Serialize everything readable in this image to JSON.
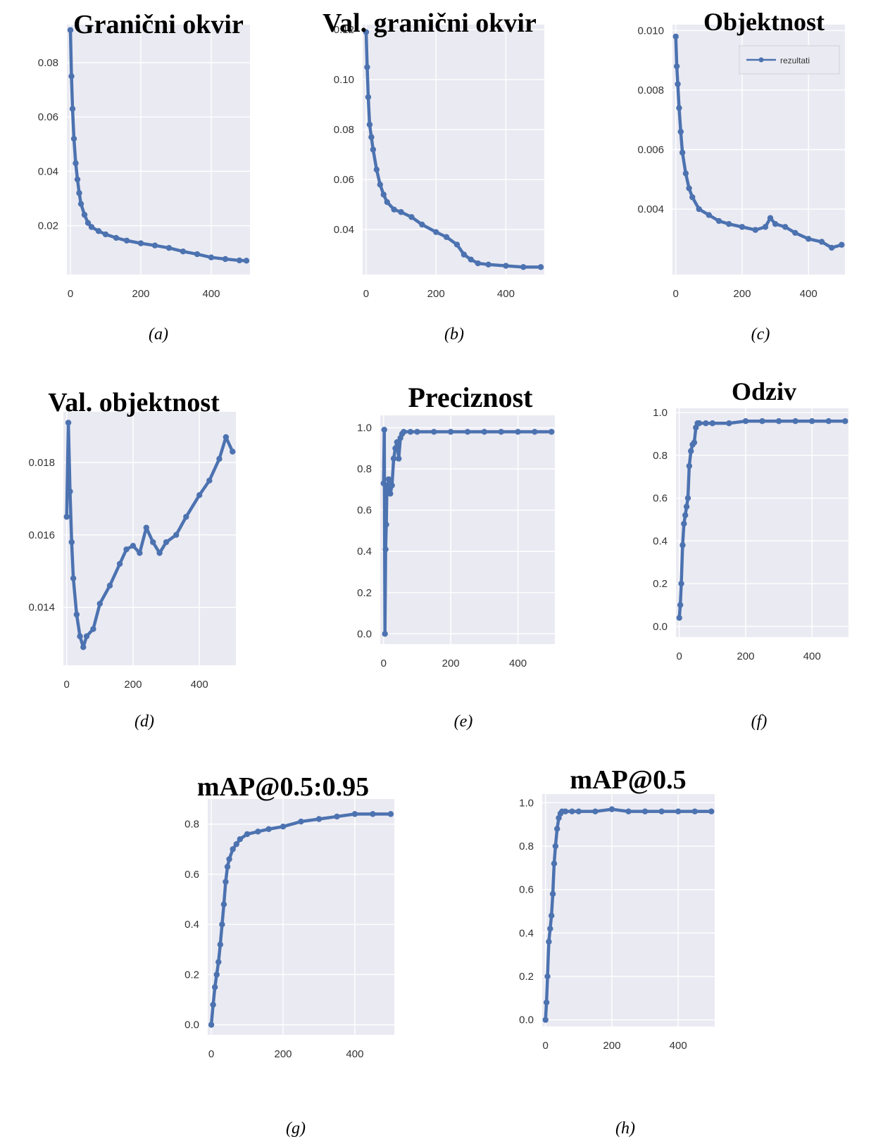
{
  "colors": {
    "series": "#4c72b0",
    "plot_bg": "#eaeaf2",
    "grid": "#ffffff"
  },
  "chart_data": [
    {
      "id": "a",
      "type": "line",
      "title": "Granični okvir",
      "caption": "(a)",
      "xlim": [
        -10,
        510
      ],
      "xticks": [
        0,
        200,
        400
      ],
      "ylim": [
        0.002,
        0.094
      ],
      "yticks": [
        0.02,
        0.04,
        0.06,
        0.08
      ],
      "ytick_labels": [
        "0.02",
        "0.04",
        "0.06",
        "0.08"
      ],
      "x": [
        0,
        3,
        6,
        10,
        15,
        20,
        25,
        30,
        40,
        50,
        60,
        80,
        100,
        130,
        160,
        200,
        240,
        280,
        320,
        360,
        400,
        440,
        480,
        500
      ],
      "y": [
        0.092,
        0.075,
        0.063,
        0.052,
        0.043,
        0.037,
        0.032,
        0.028,
        0.024,
        0.021,
        0.0195,
        0.018,
        0.0168,
        0.0155,
        0.0145,
        0.0135,
        0.0127,
        0.0118,
        0.0105,
        0.0095,
        0.0083,
        0.0077,
        0.0072,
        0.0071
      ],
      "legend": null
    },
    {
      "id": "b",
      "type": "line",
      "title": "Val. granični okvir",
      "caption": "(b)",
      "xlim": [
        -10,
        510
      ],
      "xticks": [
        0,
        200,
        400
      ],
      "ylim": [
        0.022,
        0.122
      ],
      "yticks": [
        0.04,
        0.06,
        0.08,
        0.1,
        0.12
      ],
      "ytick_labels": [
        "0.04",
        "0.06",
        "0.08",
        "0.10",
        "0.12"
      ],
      "x": [
        0,
        3,
        6,
        10,
        15,
        20,
        30,
        40,
        50,
        60,
        80,
        100,
        130,
        160,
        200,
        230,
        260,
        280,
        300,
        320,
        350,
        400,
        450,
        500
      ],
      "y": [
        0.119,
        0.105,
        0.093,
        0.082,
        0.077,
        0.072,
        0.064,
        0.058,
        0.054,
        0.051,
        0.048,
        0.047,
        0.045,
        0.042,
        0.039,
        0.037,
        0.034,
        0.03,
        0.028,
        0.0265,
        0.026,
        0.0255,
        0.025,
        0.025
      ],
      "legend": null
    },
    {
      "id": "c",
      "type": "line",
      "title": "Objektnost",
      "caption": "(c)",
      "xlim": [
        -10,
        510
      ],
      "xticks": [
        0,
        200,
        400
      ],
      "ylim": [
        0.0018,
        0.0102
      ],
      "yticks": [
        0.004,
        0.006,
        0.008,
        0.01
      ],
      "ytick_labels": [
        "0.004",
        "0.006",
        "0.008",
        "0.010"
      ],
      "x": [
        0,
        3,
        6,
        10,
        15,
        20,
        30,
        40,
        50,
        70,
        100,
        130,
        160,
        200,
        240,
        270,
        285,
        300,
        330,
        360,
        400,
        440,
        470,
        500
      ],
      "y": [
        0.0098,
        0.0088,
        0.0082,
        0.0074,
        0.0066,
        0.0059,
        0.0052,
        0.0047,
        0.0044,
        0.004,
        0.0038,
        0.0036,
        0.0035,
        0.0034,
        0.0033,
        0.0034,
        0.0037,
        0.0035,
        0.0034,
        0.0032,
        0.003,
        0.0029,
        0.0027,
        0.0028
      ],
      "legend": {
        "label": "rezultati",
        "position": "upper-right"
      }
    },
    {
      "id": "d",
      "type": "line",
      "title": "Val. objektnost",
      "caption": "(d)",
      "xlim": [
        -10,
        510
      ],
      "xticks": [
        0,
        200,
        400
      ],
      "ylim": [
        0.0124,
        0.0194
      ],
      "yticks": [
        0.014,
        0.016,
        0.018
      ],
      "ytick_labels": [
        "0.014",
        "0.016",
        "0.018"
      ],
      "x": [
        0,
        5,
        10,
        15,
        20,
        30,
        40,
        50,
        60,
        80,
        100,
        130,
        160,
        180,
        200,
        220,
        240,
        260,
        280,
        300,
        330,
        360,
        400,
        430,
        460,
        480,
        500
      ],
      "y": [
        0.0165,
        0.0191,
        0.0172,
        0.0158,
        0.0148,
        0.0138,
        0.0132,
        0.0129,
        0.0132,
        0.0134,
        0.0141,
        0.0146,
        0.0152,
        0.0156,
        0.0157,
        0.0155,
        0.0162,
        0.0158,
        0.0155,
        0.0158,
        0.016,
        0.0165,
        0.0171,
        0.0175,
        0.0181,
        0.0187,
        0.0183
      ],
      "legend": null
    },
    {
      "id": "e",
      "type": "line",
      "title": "Preciznost",
      "caption": "(e)",
      "xlim": [
        -10,
        510
      ],
      "xticks": [
        0,
        200,
        400
      ],
      "ylim": [
        -0.05,
        1.06
      ],
      "yticks": [
        0.0,
        0.2,
        0.4,
        0.6,
        0.8,
        1.0
      ],
      "ytick_labels": [
        "0.0",
        "0.2",
        "0.4",
        "0.6",
        "0.8",
        "1.0"
      ],
      "x": [
        0,
        2,
        4,
        6,
        8,
        10,
        12,
        15,
        20,
        25,
        30,
        35,
        40,
        45,
        50,
        55,
        60,
        80,
        100,
        150,
        200,
        250,
        300,
        350,
        400,
        450,
        500
      ],
      "y": [
        0.73,
        0.99,
        0.0,
        0.41,
        0.53,
        0.72,
        0.7,
        0.75,
        0.68,
        0.72,
        0.85,
        0.9,
        0.93,
        0.85,
        0.95,
        0.97,
        0.98,
        0.98,
        0.98,
        0.98,
        0.98,
        0.98,
        0.98,
        0.98,
        0.98,
        0.98,
        0.98
      ],
      "legend": null
    },
    {
      "id": "f",
      "type": "line",
      "title": "Odziv",
      "caption": "(f)",
      "xlim": [
        -10,
        510
      ],
      "xticks": [
        0,
        200,
        400
      ],
      "ylim": [
        -0.05,
        1.02
      ],
      "yticks": [
        0.0,
        0.2,
        0.4,
        0.6,
        0.8,
        1.0
      ],
      "ytick_labels": [
        "0.0",
        "0.2",
        "0.4",
        "0.6",
        "0.8",
        "1.0"
      ],
      "x": [
        0,
        3,
        6,
        10,
        14,
        18,
        22,
        26,
        30,
        35,
        40,
        45,
        50,
        55,
        60,
        80,
        100,
        150,
        200,
        250,
        300,
        350,
        400,
        450,
        500
      ],
      "y": [
        0.04,
        0.1,
        0.2,
        0.38,
        0.48,
        0.52,
        0.56,
        0.6,
        0.75,
        0.82,
        0.85,
        0.86,
        0.93,
        0.95,
        0.95,
        0.95,
        0.95,
        0.95,
        0.96,
        0.96,
        0.96,
        0.96,
        0.96,
        0.96,
        0.96
      ],
      "legend": null
    },
    {
      "id": "g",
      "type": "line",
      "title": "mAP@0.5:0.95",
      "caption": "(g)",
      "xlim": [
        -10,
        510
      ],
      "xticks": [
        0,
        200,
        400
      ],
      "ylim": [
        -0.04,
        0.9
      ],
      "yticks": [
        0.0,
        0.2,
        0.4,
        0.6,
        0.8
      ],
      "ytick_labels": [
        "0.0",
        "0.2",
        "0.4",
        "0.6",
        "0.8"
      ],
      "x": [
        0,
        5,
        10,
        15,
        20,
        25,
        30,
        35,
        40,
        45,
        50,
        60,
        70,
        80,
        100,
        130,
        160,
        200,
        250,
        300,
        350,
        400,
        450,
        500
      ],
      "y": [
        0.0,
        0.08,
        0.15,
        0.2,
        0.25,
        0.32,
        0.4,
        0.48,
        0.57,
        0.63,
        0.66,
        0.7,
        0.72,
        0.74,
        0.76,
        0.77,
        0.78,
        0.79,
        0.81,
        0.82,
        0.83,
        0.84,
        0.84,
        0.84
      ],
      "legend": null
    },
    {
      "id": "h",
      "type": "line",
      "title": "mAP@0.5",
      "caption": "(h)",
      "xlim": [
        -10,
        510
      ],
      "xticks": [
        0,
        200,
        400
      ],
      "ylim": [
        -0.03,
        1.04
      ],
      "yticks": [
        0.0,
        0.2,
        0.4,
        0.6,
        0.8,
        1.0
      ],
      "ytick_labels": [
        "0.0",
        "0.2",
        "0.4",
        "0.6",
        "0.8",
        "1.0"
      ],
      "x": [
        0,
        3,
        6,
        10,
        14,
        18,
        22,
        26,
        30,
        35,
        40,
        45,
        50,
        60,
        80,
        100,
        150,
        200,
        250,
        300,
        350,
        400,
        450,
        500
      ],
      "y": [
        0.0,
        0.08,
        0.2,
        0.36,
        0.42,
        0.48,
        0.58,
        0.72,
        0.8,
        0.88,
        0.93,
        0.95,
        0.96,
        0.96,
        0.96,
        0.96,
        0.96,
        0.97,
        0.96,
        0.96,
        0.96,
        0.96,
        0.96,
        0.96
      ],
      "legend": null
    }
  ]
}
